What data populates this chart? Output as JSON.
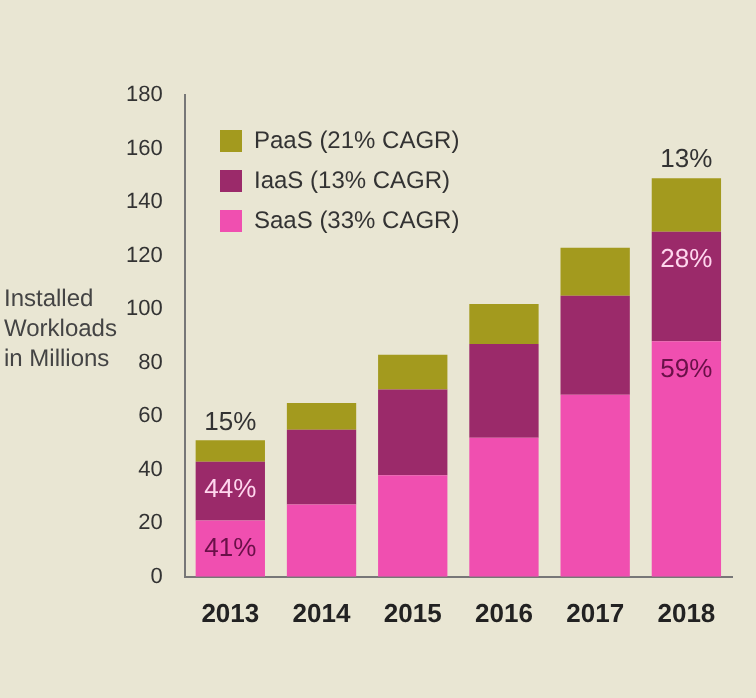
{
  "chart_data": {
    "type": "bar",
    "stacked": true,
    "ylabel": "Installed Workloads in Millions",
    "categories": [
      "2013",
      "2014",
      "2015",
      "2016",
      "2017",
      "2018"
    ],
    "series": [
      {
        "name": "SaaS (33% CAGR)",
        "color": "#f04fb0",
        "values": [
          21,
          27,
          38,
          52,
          68,
          88
        ]
      },
      {
        "name": "IaaS (13% CAGR)",
        "color": "#9b2a6a",
        "values": [
          22,
          28,
          32,
          35,
          37,
          41
        ]
      },
      {
        "name": "PaaS (21% CAGR)",
        "color": "#a39a1e",
        "values": [
          8,
          10,
          13,
          15,
          18,
          20
        ]
      }
    ],
    "annotations": [
      {
        "text": "41%",
        "x": "2013",
        "y": 21
      },
      {
        "text": "44%",
        "x": "2013",
        "y": 43
      },
      {
        "text": "15%",
        "x": "2013",
        "y": 51
      },
      {
        "text": "59%",
        "x": "2018",
        "y": 88
      },
      {
        "text": "28%",
        "x": "2018",
        "y": 129
      },
      {
        "text": "13%",
        "x": "2018",
        "y": 149
      }
    ],
    "ylim": [
      0,
      180
    ],
    "yticks": [
      0,
      20,
      40,
      60,
      80,
      100,
      120,
      140,
      160,
      180
    ],
    "grid": false,
    "legend": "top left"
  }
}
